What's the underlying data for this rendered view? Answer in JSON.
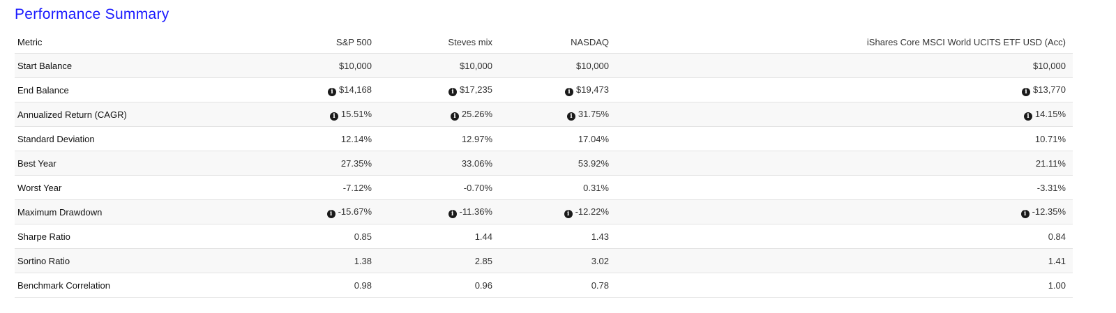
{
  "title": "Performance Summary",
  "table": {
    "headers": [
      "Metric",
      "S&P 500",
      "Steves mix",
      "NASDAQ",
      "iShares Core MSCI World UCITS ETF USD (Acc)"
    ],
    "rows": [
      {
        "metric": "Start Balance",
        "info": false,
        "values": [
          "$10,000",
          "$10,000",
          "$10,000",
          "$10,000"
        ]
      },
      {
        "metric": "End Balance",
        "info": true,
        "values": [
          "$14,168",
          "$17,235",
          "$19,473",
          "$13,770"
        ]
      },
      {
        "metric": "Annualized Return (CAGR)",
        "info": true,
        "values": [
          "15.51%",
          "25.26%",
          "31.75%",
          "14.15%"
        ]
      },
      {
        "metric": "Standard Deviation",
        "info": false,
        "values": [
          "12.14%",
          "12.97%",
          "17.04%",
          "10.71%"
        ]
      },
      {
        "metric": "Best Year",
        "info": false,
        "values": [
          "27.35%",
          "33.06%",
          "53.92%",
          "21.11%"
        ]
      },
      {
        "metric": "Worst Year",
        "info": false,
        "values": [
          "-7.12%",
          "-0.70%",
          "0.31%",
          "-3.31%"
        ]
      },
      {
        "metric": "Maximum Drawdown",
        "info": true,
        "values": [
          "-15.67%",
          "-11.36%",
          "-12.22%",
          "-12.35%"
        ]
      },
      {
        "metric": "Sharpe Ratio",
        "info": false,
        "values": [
          "0.85",
          "1.44",
          "1.43",
          "0.84"
        ]
      },
      {
        "metric": "Sortino Ratio",
        "info": false,
        "values": [
          "1.38",
          "2.85",
          "3.02",
          "1.41"
        ]
      },
      {
        "metric": "Benchmark Correlation",
        "info": false,
        "values": [
          "0.98",
          "0.96",
          "0.78",
          "1.00"
        ]
      }
    ]
  }
}
